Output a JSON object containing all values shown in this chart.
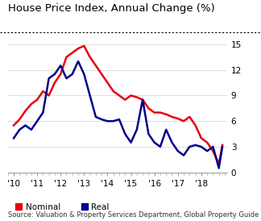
{
  "title": "House Price Index, Annual Change (%)",
  "source": "Source: Valuation & Property Services Department, Global Property Guide",
  "nominal_x": [
    2010.0,
    2010.25,
    2010.5,
    2010.75,
    2011.0,
    2011.25,
    2011.5,
    2011.75,
    2012.0,
    2012.25,
    2012.5,
    2012.75,
    2013.0,
    2013.25,
    2013.5,
    2013.75,
    2014.0,
    2014.25,
    2014.5,
    2014.75,
    2015.0,
    2015.25,
    2015.5,
    2015.75,
    2016.0,
    2016.25,
    2016.5,
    2016.75,
    2017.0,
    2017.25,
    2017.5,
    2017.75,
    2018.0,
    2018.25,
    2018.5,
    2018.75,
    2018.9
  ],
  "nominal_y": [
    5.5,
    6.2,
    7.2,
    8.0,
    8.5,
    9.5,
    9.0,
    10.5,
    11.5,
    13.5,
    14.0,
    14.5,
    14.8,
    13.5,
    12.5,
    11.5,
    10.5,
    9.5,
    9.0,
    8.5,
    9.0,
    8.8,
    8.5,
    7.5,
    7.0,
    7.0,
    6.8,
    6.5,
    6.3,
    6.0,
    6.5,
    5.5,
    4.0,
    3.5,
    2.5,
    1.0,
    3.2
  ],
  "real_x": [
    2010.0,
    2010.25,
    2010.5,
    2010.75,
    2011.0,
    2011.25,
    2011.5,
    2011.75,
    2012.0,
    2012.25,
    2012.5,
    2012.75,
    2013.0,
    2013.25,
    2013.5,
    2013.75,
    2014.0,
    2014.25,
    2014.5,
    2014.75,
    2015.0,
    2015.25,
    2015.5,
    2015.75,
    2016.0,
    2016.25,
    2016.5,
    2016.75,
    2017.0,
    2017.25,
    2017.5,
    2017.75,
    2018.0,
    2018.25,
    2018.5,
    2018.75,
    2018.9
  ],
  "real_y": [
    4.0,
    5.0,
    5.5,
    5.0,
    6.0,
    7.0,
    11.0,
    11.5,
    12.5,
    11.0,
    11.5,
    13.0,
    11.5,
    9.0,
    6.5,
    6.2,
    6.0,
    6.0,
    6.2,
    4.5,
    3.5,
    5.0,
    8.5,
    4.5,
    3.5,
    3.0,
    5.0,
    3.5,
    2.5,
    2.0,
    3.0,
    3.2,
    3.0,
    2.5,
    3.0,
    0.5,
    3.0
  ],
  "nominal_color": "#e8000d",
  "real_color": "#00008b",
  "ylim": [
    0,
    15
  ],
  "yticks": [
    0,
    3,
    6,
    9,
    12,
    15
  ],
  "xlim": [
    2009.75,
    2019.1
  ],
  "xticks": [
    2010,
    2011,
    2012,
    2013,
    2014,
    2015,
    2016,
    2017,
    2018
  ],
  "xticklabels": [
    "'10",
    "'11",
    "'12",
    "'13",
    "'14",
    "'15",
    "'16",
    "'17",
    "'18"
  ],
  "legend_nominal": "Nominal",
  "legend_real": "Real",
  "linewidth": 1.8,
  "background_color": "#ffffff",
  "title_fontsize": 9.5,
  "axis_fontsize": 7.5,
  "source_fontsize": 6.0,
  "legend_fontsize": 7.5
}
